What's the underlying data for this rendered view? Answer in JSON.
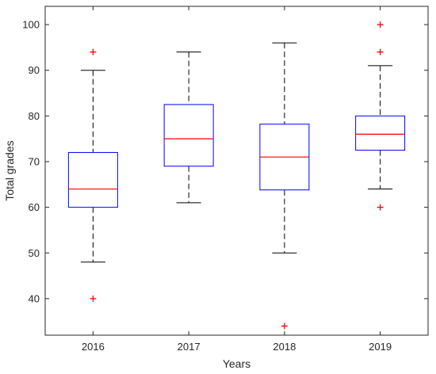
{
  "chart_data": {
    "type": "box",
    "xlabel": "Years",
    "ylabel": "Total grades",
    "ylim": [
      32,
      104
    ],
    "yticks": [
      40,
      50,
      60,
      70,
      80,
      90,
      100
    ],
    "categories": [
      "2016",
      "2017",
      "2018",
      "2019"
    ],
    "boxes": [
      {
        "category": "2016",
        "whisker_low": 48,
        "q1": 60,
        "median": 64,
        "q3": 72,
        "whisker_high": 90,
        "outliers": [
          94,
          40
        ]
      },
      {
        "category": "2017",
        "whisker_low": 61,
        "q1": 69,
        "median": 75,
        "q3": 82.5,
        "whisker_high": 94,
        "outliers": []
      },
      {
        "category": "2018",
        "whisker_low": 50,
        "q1": 63.8,
        "median": 71,
        "q3": 78.2,
        "whisker_high": 96,
        "outliers": [
          34
        ]
      },
      {
        "category": "2019",
        "whisker_low": 64,
        "q1": 72.5,
        "median": 76,
        "q3": 80,
        "whisker_high": 91,
        "outliers": [
          100,
          94,
          60
        ]
      }
    ],
    "grid": false,
    "colors": {
      "box": "#0000ff",
      "median": "#ff0000",
      "whisker": "#000000",
      "outlier": "#ff0000",
      "axes": "#262626"
    }
  }
}
